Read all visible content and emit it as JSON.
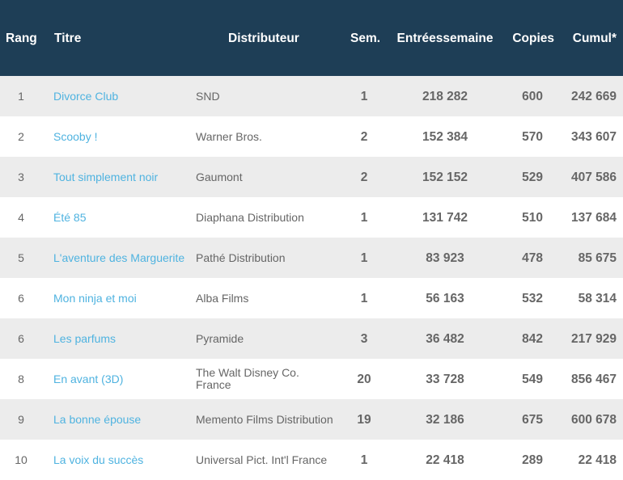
{
  "columns": {
    "rang": "Rang",
    "titre": "Titre",
    "distributeur": "Distributeur",
    "semaine": "Sem.",
    "entrees_l1": "Entrées",
    "entrees_l2": "semaine",
    "copies": "Copies",
    "cumul": "Cumul*"
  },
  "colors": {
    "header_bg": "#1e3e56",
    "title_link": "#4fb3e0",
    "row_alt": "#ececec"
  },
  "rows": [
    {
      "rang": "1",
      "titre": "Divorce Club",
      "distributeur": "SND",
      "semaine": "1",
      "entrees": "218 282",
      "copies": "600",
      "cumul": "242 669"
    },
    {
      "rang": "2",
      "titre": "Scooby !",
      "distributeur": "Warner Bros.",
      "semaine": "2",
      "entrees": "152 384",
      "copies": "570",
      "cumul": "343 607"
    },
    {
      "rang": "3",
      "titre": "Tout simplement noir",
      "distributeur": "Gaumont",
      "semaine": "2",
      "entrees": "152 152",
      "copies": "529",
      "cumul": "407 586"
    },
    {
      "rang": "4",
      "titre": "Été 85",
      "distributeur": "Diaphana Distribution",
      "semaine": "1",
      "entrees": "131 742",
      "copies": "510",
      "cumul": "137 684"
    },
    {
      "rang": "5",
      "titre": "L'aventure des Marguerite",
      "distributeur": "Pathé Distribution",
      "semaine": "1",
      "entrees": "83 923",
      "copies": "478",
      "cumul": "85 675"
    },
    {
      "rang": "6",
      "titre": "Mon ninja et moi",
      "distributeur": "Alba Films",
      "semaine": "1",
      "entrees": "56 163",
      "copies": "532",
      "cumul": "58 314"
    },
    {
      "rang": "6",
      "titre": "Les parfums",
      "distributeur": "Pyramide",
      "semaine": "3",
      "entrees": "36 482",
      "copies": "842",
      "cumul": "217 929"
    },
    {
      "rang": "8",
      "titre": "En avant (3D)",
      "distributeur": "The Walt Disney Co. France",
      "semaine": "20",
      "entrees": "33 728",
      "copies": "549",
      "cumul": "856 467"
    },
    {
      "rang": "9",
      "titre": "La bonne épouse",
      "distributeur": "Memento Films Distribution",
      "semaine": "19",
      "entrees": "32 186",
      "copies": "675",
      "cumul": "600 678"
    },
    {
      "rang": "10",
      "titre": "La voix du succès",
      "distributeur": "Universal Pict. Int'l France",
      "semaine": "1",
      "entrees": "22 418",
      "copies": "289",
      "cumul": "22 418"
    }
  ]
}
